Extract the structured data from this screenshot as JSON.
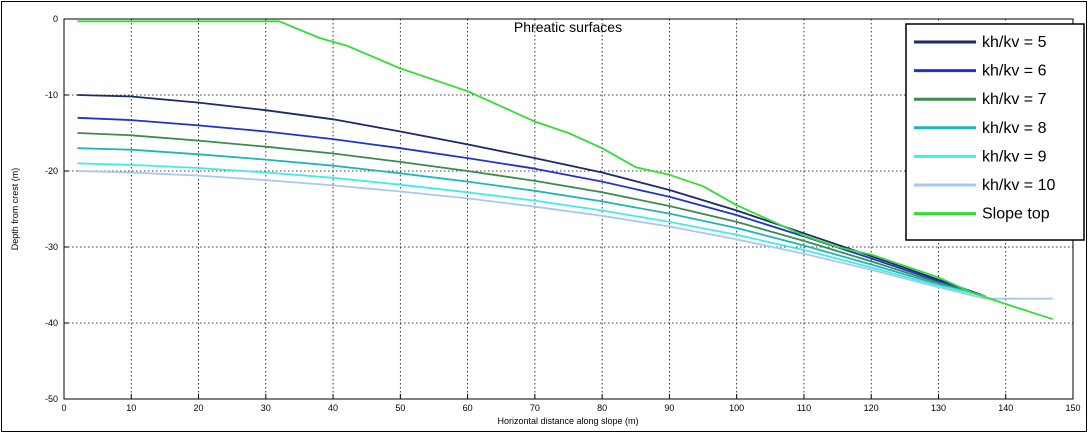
{
  "chart_data": {
    "type": "line",
    "title": "Phreatic surfaces",
    "xlabel": "Horizontal distance along slope (m)",
    "ylabel": "Depth from crest (m)",
    "xlim": [
      0,
      150
    ],
    "ylim": [
      -50,
      0
    ],
    "xticks": [
      0,
      10,
      20,
      30,
      40,
      50,
      60,
      70,
      80,
      90,
      100,
      110,
      120,
      130,
      140,
      150
    ],
    "yticks": [
      0,
      -10,
      -20,
      -30,
      -40,
      -50
    ],
    "grid": true,
    "legend_position": "top-right",
    "series": [
      {
        "name": "kh/kv = 5",
        "color": "#1a2a6c",
        "points": [
          [
            2,
            -10
          ],
          [
            10,
            -10.2
          ],
          [
            20,
            -11
          ],
          [
            30,
            -12
          ],
          [
            40,
            -13.2
          ],
          [
            50,
            -14.8
          ],
          [
            60,
            -16.5
          ],
          [
            70,
            -18.3
          ],
          [
            80,
            -20.2
          ],
          [
            90,
            -22.5
          ],
          [
            100,
            -25.2
          ],
          [
            110,
            -28.2
          ],
          [
            120,
            -31.2
          ],
          [
            130,
            -34.3
          ],
          [
            137,
            -36.5
          ]
        ]
      },
      {
        "name": "kh/kv = 6",
        "color": "#2233cc",
        "points": [
          [
            2,
            -13
          ],
          [
            10,
            -13.3
          ],
          [
            20,
            -14
          ],
          [
            30,
            -14.8
          ],
          [
            40,
            -15.8
          ],
          [
            50,
            -17
          ],
          [
            60,
            -18.3
          ],
          [
            70,
            -19.7
          ],
          [
            80,
            -21.4
          ],
          [
            90,
            -23.4
          ],
          [
            100,
            -25.8
          ],
          [
            110,
            -28.6
          ],
          [
            120,
            -31.5
          ],
          [
            130,
            -34.5
          ],
          [
            137,
            -36.5
          ]
        ]
      },
      {
        "name": "kh/kv = 7",
        "color": "#3d8a4f",
        "points": [
          [
            2,
            -15
          ],
          [
            10,
            -15.3
          ],
          [
            20,
            -16
          ],
          [
            30,
            -16.8
          ],
          [
            40,
            -17.7
          ],
          [
            50,
            -18.8
          ],
          [
            60,
            -20
          ],
          [
            70,
            -21.3
          ],
          [
            80,
            -22.8
          ],
          [
            90,
            -24.6
          ],
          [
            100,
            -26.7
          ],
          [
            110,
            -29.2
          ],
          [
            120,
            -31.9
          ],
          [
            130,
            -34.7
          ],
          [
            137,
            -36.5
          ]
        ]
      },
      {
        "name": "kh/kv = 8",
        "color": "#1fb5b5",
        "points": [
          [
            2,
            -17
          ],
          [
            10,
            -17.2
          ],
          [
            20,
            -17.8
          ],
          [
            30,
            -18.5
          ],
          [
            40,
            -19.3
          ],
          [
            50,
            -20.3
          ],
          [
            60,
            -21.4
          ],
          [
            70,
            -22.6
          ],
          [
            80,
            -24
          ],
          [
            90,
            -25.6
          ],
          [
            100,
            -27.5
          ],
          [
            110,
            -29.8
          ],
          [
            120,
            -32.3
          ],
          [
            130,
            -34.9
          ],
          [
            137,
            -36.5
          ]
        ]
      },
      {
        "name": "kh/kv = 9",
        "color": "#44eaea",
        "points": [
          [
            2,
            -19
          ],
          [
            10,
            -19.2
          ],
          [
            20,
            -19.6
          ],
          [
            30,
            -20.2
          ],
          [
            40,
            -20.9
          ],
          [
            50,
            -21.8
          ],
          [
            60,
            -22.8
          ],
          [
            70,
            -23.9
          ],
          [
            80,
            -25.2
          ],
          [
            90,
            -26.7
          ],
          [
            100,
            -28.4
          ],
          [
            110,
            -30.4
          ],
          [
            120,
            -32.7
          ],
          [
            130,
            -35.1
          ],
          [
            137,
            -36.5
          ]
        ]
      },
      {
        "name": "kh/kv = 10",
        "color": "#a8c8ec",
        "points": [
          [
            2,
            -20
          ],
          [
            10,
            -20.2
          ],
          [
            20,
            -20.6
          ],
          [
            30,
            -21.2
          ],
          [
            40,
            -21.9
          ],
          [
            50,
            -22.7
          ],
          [
            60,
            -23.6
          ],
          [
            70,
            -24.7
          ],
          [
            80,
            -25.9
          ],
          [
            90,
            -27.3
          ],
          [
            100,
            -29
          ],
          [
            110,
            -30.9
          ],
          [
            120,
            -33
          ],
          [
            130,
            -35.3
          ],
          [
            137,
            -36.8
          ],
          [
            147,
            -36.8
          ]
        ]
      },
      {
        "name": "Slope top",
        "color": "#33dd33",
        "points": [
          [
            2,
            -0.3
          ],
          [
            32,
            -0.3
          ],
          [
            38,
            -2.5
          ],
          [
            42,
            -3.5
          ],
          [
            50,
            -6.5
          ],
          [
            55,
            -8
          ],
          [
            60,
            -9.5
          ],
          [
            70,
            -13.5
          ],
          [
            75,
            -15
          ],
          [
            80,
            -17
          ],
          [
            85,
            -19.5
          ],
          [
            90,
            -20.5
          ],
          [
            95,
            -22
          ],
          [
            100,
            -24.5
          ],
          [
            105,
            -26.5
          ],
          [
            110,
            -28.5
          ],
          [
            115,
            -30
          ],
          [
            120,
            -31
          ],
          [
            125,
            -32.5
          ],
          [
            130,
            -34
          ],
          [
            135,
            -36
          ],
          [
            140,
            -37.5
          ],
          [
            147,
            -39.5
          ]
        ]
      }
    ]
  }
}
